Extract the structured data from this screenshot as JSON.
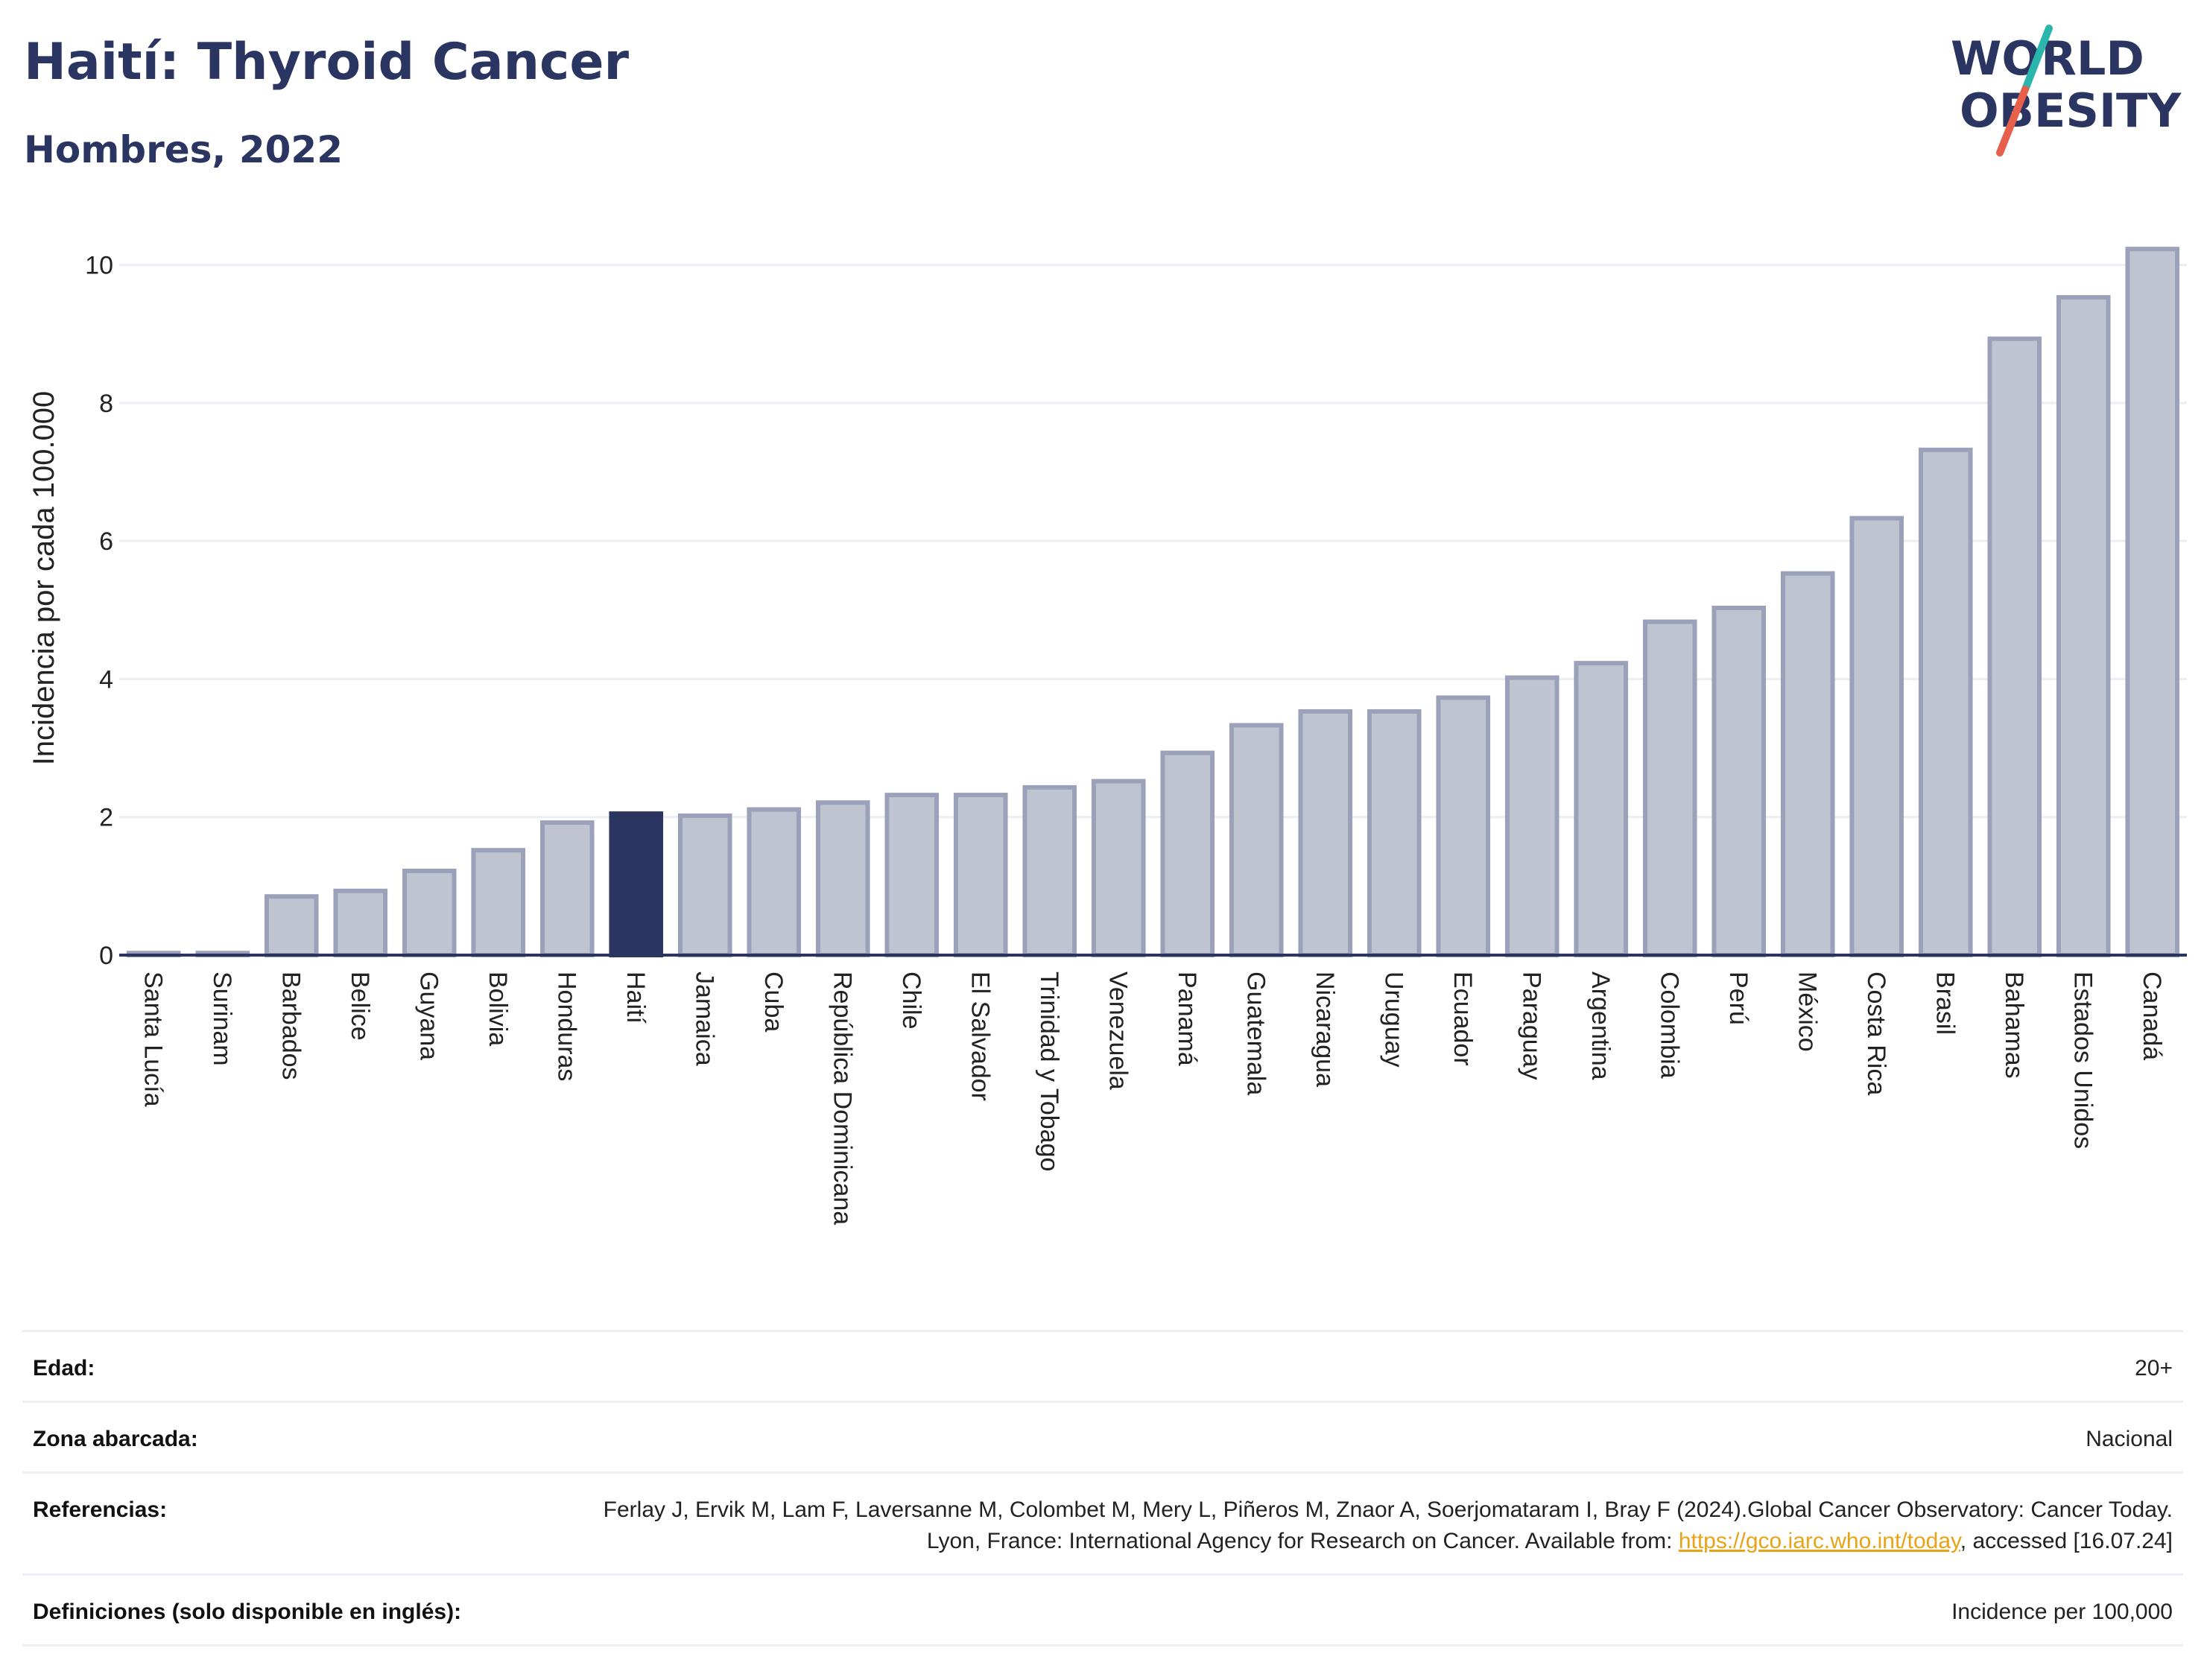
{
  "header": {
    "title": "Haití: Thyroid Cancer",
    "subtitle": "Hombres, 2022"
  },
  "logo": {
    "line1": "WORLD",
    "line2": "OBESITY",
    "colors": {
      "text": "#2b3561",
      "slash_top": "#2bb6ad",
      "slash_bottom": "#e8604c"
    }
  },
  "chart_data": {
    "type": "bar",
    "title": "",
    "xlabel": "",
    "ylabel": "Incidencia por cada 100.000",
    "ylim": [
      0,
      10.6
    ],
    "yticks": [
      0,
      2,
      4,
      6,
      8,
      10
    ],
    "grid": true,
    "highlight": "Haití",
    "colors": {
      "bar": "#c0c4d1",
      "bar_edge": "#9ba1b9",
      "highlight": "#2b3561",
      "grid": "#eceef3",
      "axis": "#2b3561"
    },
    "categories": [
      "Santa Lucía",
      "Surinam",
      "Barbados",
      "Belice",
      "Guyana",
      "Bolivia",
      "Honduras",
      "Haití",
      "Jamaica",
      "Cuba",
      "República Dominicana",
      "Chile",
      "El Salvador",
      "Trinidad y Tobago",
      "Venezuela",
      "Panamá",
      "Guatemala",
      "Nicaragua",
      "Uruguay",
      "Ecuador",
      "Paraguay",
      "Argentina",
      "Colombia",
      "Perú",
      "México",
      "Costa Rica",
      "Brasil",
      "Bahamas",
      "Estados Unidos",
      "Canadá"
    ],
    "values": [
      0.03,
      0.03,
      0.85,
      0.93,
      1.22,
      1.52,
      1.92,
      2.05,
      2.02,
      2.11,
      2.21,
      2.32,
      2.32,
      2.43,
      2.52,
      2.93,
      3.33,
      3.53,
      3.53,
      3.73,
      4.02,
      4.23,
      4.83,
      5.03,
      5.53,
      6.33,
      7.32,
      8.93,
      9.53,
      10.23
    ]
  },
  "info": {
    "age_label": "Edad:",
    "age_value": "20+",
    "area_label": "Zona abarcada:",
    "area_value": "Nacional",
    "refs_label": "Referencias:",
    "refs_text": "Ferlay J, Ervik M, Lam F, Laversanne M, Colombet M, Mery L, Piñeros M, Znaor A, Soerjomataram I, Bray F (2024).Global Cancer Observatory: Cancer Today. Lyon, France: International Agency for Research on Cancer. Available from: ",
    "refs_link": "https://gco.iarc.who.int/today",
    "refs_tail": ", accessed [16.07.24]",
    "defs_label": "Definiciones (solo disponible en inglés):",
    "defs_value": "Incidence per 100,000"
  }
}
